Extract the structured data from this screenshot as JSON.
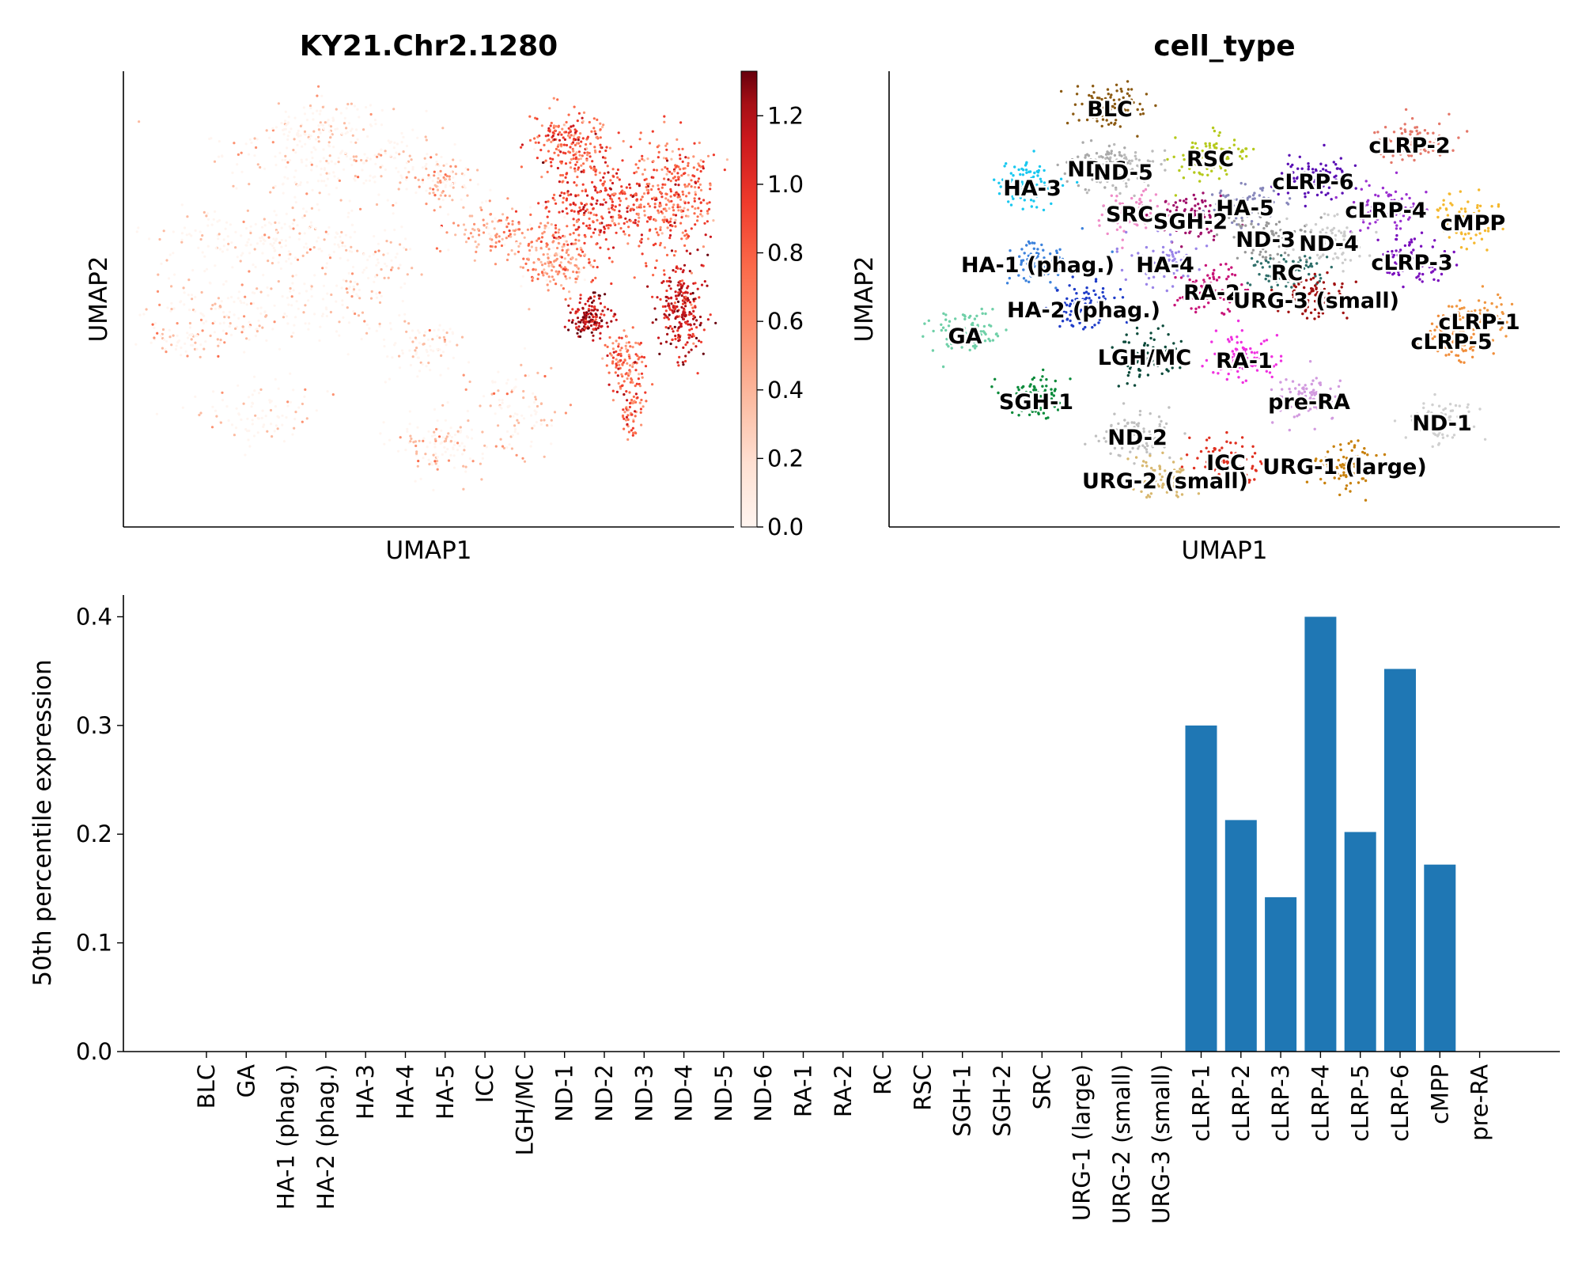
{
  "colors": {
    "bar": "#1f77b4",
    "axis": "#000000",
    "colormap": [
      "#fff5f0",
      "#fcbba1",
      "#fc9272",
      "#fb6a4a",
      "#ef3b2c",
      "#cb181d",
      "#a50f15",
      "#67000d"
    ]
  },
  "chart_data": [
    {
      "type": "scatter",
      "title": "KY21.Chr2.1280",
      "xlabel": "UMAP1",
      "ylabel": "UMAP2",
      "colorbar": {
        "ticks": [
          "0.0",
          "0.2",
          "0.4",
          "0.6",
          "0.8",
          "1.0",
          "1.2"
        ],
        "range": [
          0,
          1.33
        ],
        "colormap": "Reds"
      },
      "grid": false
    },
    {
      "type": "scatter",
      "title": "cell_type",
      "xlabel": "UMAP1",
      "ylabel": "UMAP2",
      "cluster_labels": [
        "BLC",
        "RSC",
        "cLRP-2",
        "ND-6",
        "ND-5",
        "HA-3",
        "cLRP-6",
        "HA-5",
        "cLRP-4",
        "cMPP",
        "SRC",
        "SGH-2",
        "ND-3",
        "ND-4",
        "HA-1 (phag.)",
        "HA-4",
        "RC",
        "cLRP-3",
        "RA-2",
        "URG-3 (small)",
        "HA-2 (phag.)",
        "cLRP-1",
        "GA",
        "cLRP-5",
        "LGH/MC",
        "RA-1",
        "SGH-1",
        "pre-RA",
        "ND-1",
        "ND-2",
        "ICC",
        "URG-1 (large)",
        "URG-2 (small)"
      ],
      "grid": false
    },
    {
      "type": "bar",
      "xlabel": "",
      "ylabel": "50th percentile expression",
      "categories": [
        "BLC",
        "GA",
        "HA-1 (phag.)",
        "HA-2 (phag.)",
        "HA-3",
        "HA-4",
        "HA-5",
        "ICC",
        "LGH/MC",
        "ND-1",
        "ND-2",
        "ND-3",
        "ND-4",
        "ND-5",
        "ND-6",
        "RA-1",
        "RA-2",
        "RC",
        "RSC",
        "SGH-1",
        "SGH-2",
        "SRC",
        "URG-1 (large)",
        "URG-2 (small)",
        "URG-3 (small)",
        "cLRP-1",
        "cLRP-2",
        "cLRP-3",
        "cLRP-4",
        "cLRP-5",
        "cLRP-6",
        "cMPP",
        "pre-RA"
      ],
      "values": [
        0,
        0,
        0,
        0,
        0,
        0,
        0,
        0,
        0,
        0,
        0,
        0,
        0,
        0,
        0,
        0,
        0,
        0,
        0,
        0,
        0,
        0,
        0,
        0,
        0,
        0.3,
        0.213,
        0.142,
        0.4,
        0.202,
        0.352,
        0.172,
        0
      ],
      "yticks": [
        "0.0",
        "0.1",
        "0.2",
        "0.3",
        "0.4"
      ],
      "ylim": [
        0,
        0.42
      ],
      "grid": false
    }
  ]
}
